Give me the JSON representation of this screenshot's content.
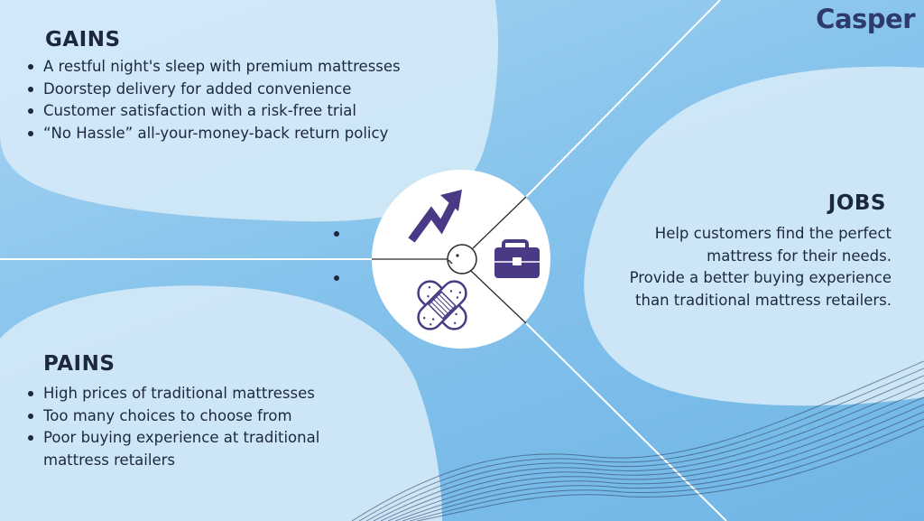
{
  "brand": {
    "name": "Casper"
  },
  "gains": {
    "title": "GAINS",
    "items": [
      "A restful night's sleep with premium mattresses",
      "Doorstep delivery for added convenience",
      "Customer satisfaction with a risk-free trial",
      "“No Hassle” all-your-money-back return policy"
    ]
  },
  "jobs": {
    "title": "JOBS",
    "items": [
      "Help customers find the perfect mattress for their needs.",
      "Provide a better buying experience than traditional mattress retailers."
    ]
  },
  "pains": {
    "title": "PAINS",
    "items": [
      "High prices of traditional mattresses",
      "Too many choices to choose from",
      "Poor buying experience at traditional mattress retailers"
    ]
  },
  "icons": {
    "gains": "trending-up-arrow-icon",
    "jobs": "briefcase-icon",
    "pains": "bandage-icon",
    "customer": "face-icon"
  },
  "colors": {
    "background": "#86c3ec",
    "blob": "#d6ebf8",
    "icon": "#4a3a86",
    "text": "#1d2740",
    "brand": "#2e3a6b"
  }
}
